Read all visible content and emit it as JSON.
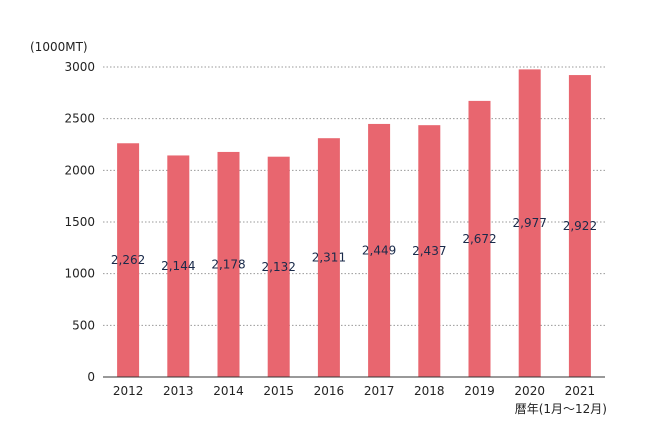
{
  "chart_data": {
    "type": "bar",
    "categories": [
      "2012",
      "2013",
      "2014",
      "2015",
      "2016",
      "2017",
      "2018",
      "2019",
      "2020",
      "2021"
    ],
    "values": [
      2262,
      2144,
      2178,
      2132,
      2311,
      2449,
      2437,
      2672,
      2977,
      2922
    ],
    "value_labels": [
      "2,262",
      "2,144",
      "2,178",
      "2,132",
      "2,311",
      "2,449",
      "2,437",
      "2,672",
      "2,977",
      "2,922"
    ],
    "ylabel": "(1000MT)",
    "xlabel": "暦年(1月～12月)",
    "ylim": [
      0,
      3000
    ],
    "yticks": [
      0,
      500,
      1000,
      1500,
      2000,
      2500,
      3000
    ],
    "grid": true,
    "bar_color": "#e8666f",
    "grid_color": "#999999",
    "axis_color": "#333333"
  }
}
